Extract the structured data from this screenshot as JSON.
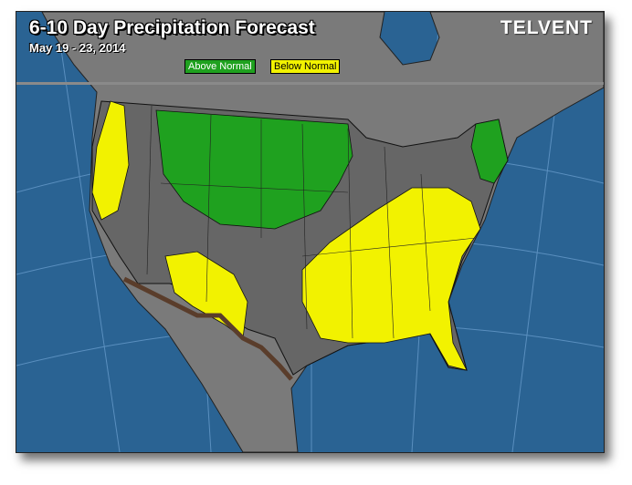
{
  "header": {
    "title": "6-10 Day Precipitation Forecast",
    "date_range": "May 19 - 23, 2014",
    "brand": "TELVENT"
  },
  "legend": [
    {
      "label": "Above Normal",
      "color": "#1fa11f"
    },
    {
      "label": "Below Normal",
      "color": "#f2f200"
    }
  ],
  "colors": {
    "ocean": "#2a6393",
    "land": "#7a7a7a",
    "us": "#666666",
    "above": "#1fa11f",
    "below": "#f2f200",
    "border": "#5a3d2b"
  }
}
